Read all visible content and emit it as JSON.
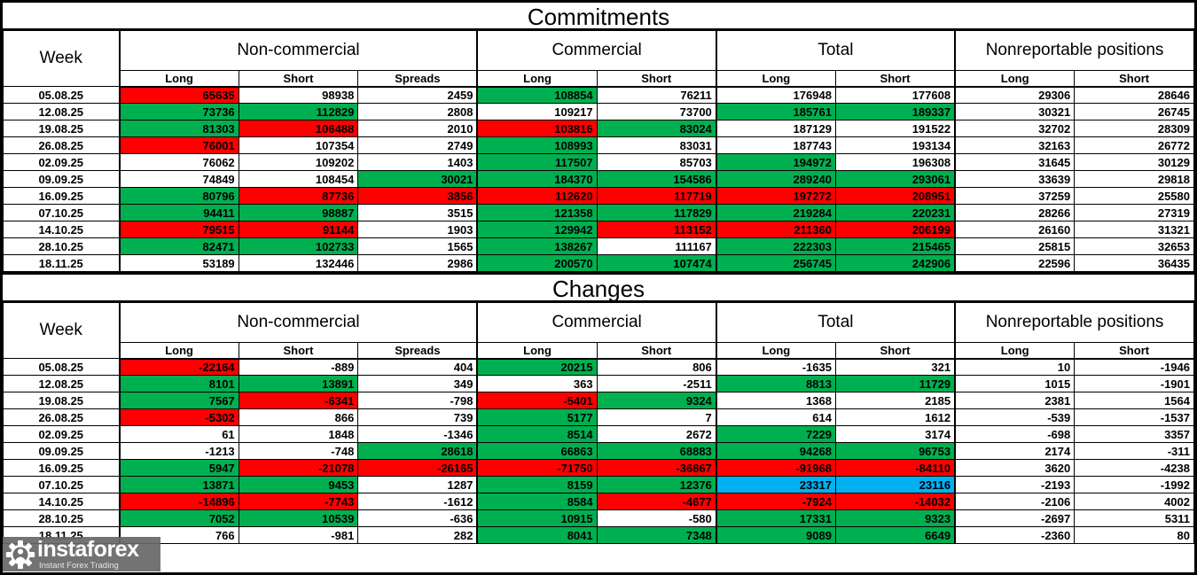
{
  "colors": {
    "w": "#FFFFFF",
    "g": "#00B050",
    "r": "#FF0000",
    "b": "#00B0F0"
  },
  "tables": [
    {
      "title": "Commitments",
      "week_label": "Week",
      "groups": [
        {
          "label": "Non-commercial",
          "sub": [
            "Long",
            "Short",
            "Spreads"
          ]
        },
        {
          "label": "Commercial",
          "sub": [
            "Long",
            "Short"
          ]
        },
        {
          "label": "Total",
          "sub": [
            "Long",
            "Short"
          ]
        },
        {
          "label": "Nonreportable positions",
          "sub": [
            "Long",
            "Short"
          ]
        }
      ],
      "rows": [
        {
          "week": "05.08.25",
          "cells": [
            [
              "65635",
              "r"
            ],
            [
              "98938",
              "w"
            ],
            [
              "2459",
              "w"
            ],
            [
              "108854",
              "g"
            ],
            [
              "76211",
              "w"
            ],
            [
              "176948",
              "w"
            ],
            [
              "177608",
              "w"
            ],
            [
              "29306",
              "w"
            ],
            [
              "28646",
              "w"
            ]
          ]
        },
        {
          "week": "12.08.25",
          "cells": [
            [
              "73736",
              "g"
            ],
            [
              "112829",
              "g"
            ],
            [
              "2808",
              "w"
            ],
            [
              "109217",
              "w"
            ],
            [
              "73700",
              "w"
            ],
            [
              "185761",
              "g"
            ],
            [
              "189337",
              "g"
            ],
            [
              "30321",
              "w"
            ],
            [
              "26745",
              "w"
            ]
          ]
        },
        {
          "week": "19.08.25",
          "cells": [
            [
              "81303",
              "g"
            ],
            [
              "106488",
              "r"
            ],
            [
              "2010",
              "w"
            ],
            [
              "103816",
              "r"
            ],
            [
              "83024",
              "g"
            ],
            [
              "187129",
              "w"
            ],
            [
              "191522",
              "w"
            ],
            [
              "32702",
              "w"
            ],
            [
              "28309",
              "w"
            ]
          ]
        },
        {
          "week": "26.08.25",
          "cells": [
            [
              "76001",
              "r"
            ],
            [
              "107354",
              "w"
            ],
            [
              "2749",
              "w"
            ],
            [
              "108993",
              "g"
            ],
            [
              "83031",
              "w"
            ],
            [
              "187743",
              "w"
            ],
            [
              "193134",
              "w"
            ],
            [
              "32163",
              "w"
            ],
            [
              "26772",
              "w"
            ]
          ]
        },
        {
          "week": "02.09.25",
          "cells": [
            [
              "76062",
              "w"
            ],
            [
              "109202",
              "w"
            ],
            [
              "1403",
              "w"
            ],
            [
              "117507",
              "g"
            ],
            [
              "85703",
              "w"
            ],
            [
              "194972",
              "g"
            ],
            [
              "196308",
              "w"
            ],
            [
              "31645",
              "w"
            ],
            [
              "30129",
              "w"
            ]
          ]
        },
        {
          "week": "09.09.25",
          "cells": [
            [
              "74849",
              "w"
            ],
            [
              "108454",
              "w"
            ],
            [
              "30021",
              "g"
            ],
            [
              "184370",
              "g"
            ],
            [
              "154586",
              "g"
            ],
            [
              "289240",
              "g"
            ],
            [
              "293061",
              "g"
            ],
            [
              "33639",
              "w"
            ],
            [
              "29818",
              "w"
            ]
          ]
        },
        {
          "week": "16.09.25",
          "cells": [
            [
              "80796",
              "g"
            ],
            [
              "87736",
              "r"
            ],
            [
              "3856",
              "r"
            ],
            [
              "112620",
              "r"
            ],
            [
              "117719",
              "r"
            ],
            [
              "197272",
              "r"
            ],
            [
              "208951",
              "r"
            ],
            [
              "37259",
              "w"
            ],
            [
              "25580",
              "w"
            ]
          ]
        },
        {
          "week": "07.10.25",
          "cells": [
            [
              "94411",
              "g"
            ],
            [
              "98887",
              "g"
            ],
            [
              "3515",
              "w"
            ],
            [
              "121358",
              "g"
            ],
            [
              "117829",
              "g"
            ],
            [
              "219284",
              "g"
            ],
            [
              "220231",
              "g"
            ],
            [
              "28266",
              "w"
            ],
            [
              "27319",
              "w"
            ]
          ]
        },
        {
          "week": "14.10.25",
          "cells": [
            [
              "79515",
              "r"
            ],
            [
              "91144",
              "r"
            ],
            [
              "1903",
              "w"
            ],
            [
              "129942",
              "g"
            ],
            [
              "113152",
              "r"
            ],
            [
              "211360",
              "r"
            ],
            [
              "206199",
              "r"
            ],
            [
              "26160",
              "w"
            ],
            [
              "31321",
              "w"
            ]
          ]
        },
        {
          "week": "28.10.25",
          "cells": [
            [
              "82471",
              "g"
            ],
            [
              "102733",
              "g"
            ],
            [
              "1565",
              "w"
            ],
            [
              "138267",
              "g"
            ],
            [
              "111167",
              "w"
            ],
            [
              "222303",
              "g"
            ],
            [
              "215465",
              "g"
            ],
            [
              "25815",
              "w"
            ],
            [
              "32653",
              "w"
            ]
          ]
        },
        {
          "week": "18.11.25",
          "cells": [
            [
              "53189",
              "w"
            ],
            [
              "132446",
              "w"
            ],
            [
              "2986",
              "w"
            ],
            [
              "200570",
              "g"
            ],
            [
              "107474",
              "g"
            ],
            [
              "256745",
              "g",
              "bold"
            ],
            [
              "242906",
              "g",
              "bold"
            ],
            [
              "22596",
              "w"
            ],
            [
              "36435",
              "w"
            ]
          ]
        }
      ]
    },
    {
      "title": "Changes",
      "week_label": "Week",
      "groups": [
        {
          "label": "Non-commercial",
          "sub": [
            "Long",
            "Short",
            "Spreads"
          ]
        },
        {
          "label": "Commercial",
          "sub": [
            "Long",
            "Short"
          ]
        },
        {
          "label": "Total",
          "sub": [
            "Long",
            "Short"
          ]
        },
        {
          "label": "Nonreportable positions",
          "sub": [
            "Long",
            "Short"
          ]
        }
      ],
      "rows": [
        {
          "week": "05.08.25",
          "cells": [
            [
              "-22164",
              "r"
            ],
            [
              "-889",
              "w"
            ],
            [
              "404",
              "w"
            ],
            [
              "20215",
              "g"
            ],
            [
              "806",
              "w"
            ],
            [
              "-1635",
              "w"
            ],
            [
              "321",
              "w"
            ],
            [
              "10",
              "w"
            ],
            [
              "-1946",
              "w"
            ]
          ]
        },
        {
          "week": "12.08.25",
          "cells": [
            [
              "8101",
              "g"
            ],
            [
              "13891",
              "g"
            ],
            [
              "349",
              "w"
            ],
            [
              "363",
              "w"
            ],
            [
              "-2511",
              "w"
            ],
            [
              "8813",
              "g"
            ],
            [
              "11729",
              "g"
            ],
            [
              "1015",
              "w"
            ],
            [
              "-1901",
              "w"
            ]
          ]
        },
        {
          "week": "19.08.25",
          "cells": [
            [
              "7567",
              "g"
            ],
            [
              "-6341",
              "r"
            ],
            [
              "-798",
              "w"
            ],
            [
              "-5401",
              "r"
            ],
            [
              "9324",
              "g"
            ],
            [
              "1368",
              "w"
            ],
            [
              "2185",
              "w"
            ],
            [
              "2381",
              "w"
            ],
            [
              "1564",
              "w"
            ]
          ]
        },
        {
          "week": "26.08.25",
          "cells": [
            [
              "-5302",
              "r"
            ],
            [
              "866",
              "w"
            ],
            [
              "739",
              "w"
            ],
            [
              "5177",
              "g"
            ],
            [
              "7",
              "w"
            ],
            [
              "614",
              "w"
            ],
            [
              "1612",
              "w"
            ],
            [
              "-539",
              "w"
            ],
            [
              "-1537",
              "w"
            ]
          ]
        },
        {
          "week": "02.09.25",
          "cells": [
            [
              "61",
              "w"
            ],
            [
              "1848",
              "w"
            ],
            [
              "-1346",
              "w"
            ],
            [
              "8514",
              "g"
            ],
            [
              "2672",
              "w"
            ],
            [
              "7229",
              "g"
            ],
            [
              "3174",
              "w"
            ],
            [
              "-698",
              "w"
            ],
            [
              "3357",
              "w"
            ]
          ]
        },
        {
          "week": "09.09.25",
          "cells": [
            [
              "-1213",
              "w"
            ],
            [
              "-748",
              "w"
            ],
            [
              "28618",
              "g"
            ],
            [
              "66863",
              "g"
            ],
            [
              "68883",
              "g"
            ],
            [
              "94268",
              "g"
            ],
            [
              "96753",
              "g"
            ],
            [
              "2174",
              "w"
            ],
            [
              "-311",
              "w"
            ]
          ]
        },
        {
          "week": "16.09.25",
          "cells": [
            [
              "5947",
              "g"
            ],
            [
              "-21078",
              "r"
            ],
            [
              "-26165",
              "r"
            ],
            [
              "-71750",
              "r"
            ],
            [
              "-36867",
              "r"
            ],
            [
              "-91968",
              "r"
            ],
            [
              "-84110",
              "r"
            ],
            [
              "3620",
              "w"
            ],
            [
              "-4238",
              "w"
            ]
          ]
        },
        {
          "week": "07.10.25",
          "cells": [
            [
              "13871",
              "g"
            ],
            [
              "9453",
              "g"
            ],
            [
              "1287",
              "w"
            ],
            [
              "8159",
              "g"
            ],
            [
              "12376",
              "g"
            ],
            [
              "23317",
              "b"
            ],
            [
              "23116",
              "b"
            ],
            [
              "-2193",
              "w"
            ],
            [
              "-1992",
              "w"
            ]
          ]
        },
        {
          "week": "14.10.25",
          "cells": [
            [
              "-14896",
              "r"
            ],
            [
              "-7743",
              "r"
            ],
            [
              "-1612",
              "w"
            ],
            [
              "8584",
              "g"
            ],
            [
              "-4677",
              "r"
            ],
            [
              "-7924",
              "r"
            ],
            [
              "-14032",
              "r"
            ],
            [
              "-2106",
              "w"
            ],
            [
              "4002",
              "w"
            ]
          ]
        },
        {
          "week": "28.10.25",
          "cells": [
            [
              "7052",
              "g"
            ],
            [
              "10539",
              "g"
            ],
            [
              "-636",
              "w"
            ],
            [
              "10915",
              "g"
            ],
            [
              "-580",
              "w"
            ],
            [
              "17331",
              "g"
            ],
            [
              "9323",
              "g"
            ],
            [
              "-2697",
              "w"
            ],
            [
              "5311",
              "w"
            ]
          ]
        },
        {
          "week": "18.11.25",
          "cells": [
            [
              "766",
              "w"
            ],
            [
              "-981",
              "w"
            ],
            [
              "282",
              "w"
            ],
            [
              "8041",
              "g"
            ],
            [
              "7348",
              "g"
            ],
            [
              "9089",
              "g",
              "bold"
            ],
            [
              "6649",
              "g",
              "bold"
            ],
            [
              "-2360",
              "w"
            ],
            [
              "80",
              "w"
            ]
          ]
        }
      ]
    }
  ],
  "watermark": {
    "brand": "instaforex",
    "tagline": "Instant Forex Trading"
  }
}
